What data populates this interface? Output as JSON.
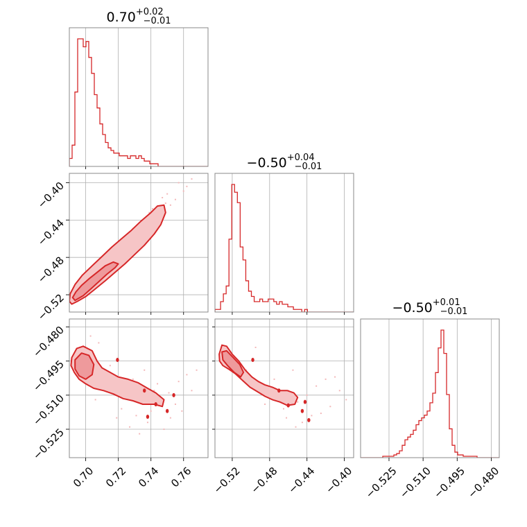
{
  "colors": {
    "series": "#d62728",
    "fill_outer": "#f6c5c6",
    "fill_inner": "#ee9a9c",
    "scatter": "#f3b8b9"
  },
  "titles": [
    {
      "value": "0.70",
      "plus": "+0.02",
      "minus": "−0.01"
    },
    {
      "value": "−0.50",
      "plus": "+0.04",
      "minus": "−0.01"
    },
    {
      "value": "−0.50",
      "plus": "+0.01",
      "minus": "−0.01"
    }
  ],
  "chart_data": {
    "type": "corner",
    "parameters": [
      {
        "range": [
          0.69,
          0.775
        ],
        "ticks": [
          0.7,
          0.72,
          0.74,
          0.76
        ],
        "tick_labels": [
          "0.70",
          "0.72",
          "0.74",
          "0.76"
        ]
      },
      {
        "range": [
          -0.5385,
          -0.39
        ],
        "ticks": [
          -0.52,
          -0.48,
          -0.44,
          -0.4
        ],
        "tick_labels": [
          "−0.52",
          "−0.48",
          "−0.44",
          "−0.40"
        ]
      },
      {
        "range": [
          -0.5375,
          -0.4765
        ],
        "ticks": [
          -0.525,
          -0.51,
          -0.495,
          -0.48
        ],
        "tick_labels": [
          "−0.525",
          "−0.510",
          "−0.495",
          "−0.480"
        ]
      }
    ],
    "histograms": [
      {
        "param": 0,
        "edges_start": 0.69,
        "bin_width": 0.0017,
        "counts": [
          3,
          8,
          28,
          48,
          48,
          45,
          47,
          41,
          35,
          27,
          22,
          16,
          12,
          9,
          7,
          6,
          5,
          5,
          4,
          4,
          4,
          3,
          4,
          4,
          3,
          4,
          3,
          2,
          2,
          1,
          1,
          1,
          0,
          0,
          0,
          0,
          0,
          0,
          0,
          0,
          0,
          0,
          0,
          0,
          0,
          0,
          0,
          0,
          0,
          0
        ]
      },
      {
        "param": 1,
        "edges_start": -0.5385,
        "bin_width": 0.003,
        "counts": [
          1,
          1,
          4,
          7,
          10,
          28,
          49,
          46,
          42,
          25,
          20,
          12,
          8,
          6,
          4,
          4,
          5,
          4,
          4,
          5,
          5,
          4,
          3,
          4,
          3,
          3,
          2,
          2,
          1,
          1,
          1,
          0,
          1,
          0,
          0,
          0,
          0,
          0,
          0,
          0,
          0,
          0,
          0,
          0,
          0,
          0,
          0,
          0,
          0,
          0
        ]
      },
      {
        "param": 2,
        "edges_start": -0.5375,
        "bin_width": 0.00122,
        "counts": [
          0,
          0,
          0,
          0,
          0,
          0,
          0,
          0,
          1,
          1,
          1,
          1,
          2,
          3,
          5,
          9,
          13,
          15,
          17,
          20,
          24,
          27,
          29,
          31,
          34,
          40,
          47,
          62,
          80,
          93,
          76,
          46,
          21,
          9,
          4,
          2,
          2,
          1,
          1,
          1,
          1,
          1,
          0,
          0,
          0,
          0,
          0,
          0,
          0,
          0
        ]
      }
    ],
    "pair_plots": [
      {
        "x_param": 0,
        "y_param": 1,
        "outer_contour": [
          [
            0.6915,
            -0.53
          ],
          [
            0.695,
            -0.527
          ],
          [
            0.7,
            -0.522
          ],
          [
            0.705,
            -0.515
          ],
          [
            0.712,
            -0.505
          ],
          [
            0.718,
            -0.496
          ],
          [
            0.724,
            -0.487
          ],
          [
            0.73,
            -0.477
          ],
          [
            0.736,
            -0.467
          ],
          [
            0.742,
            -0.455
          ],
          [
            0.746,
            -0.445
          ],
          [
            0.749,
            -0.432
          ],
          [
            0.748,
            -0.424
          ],
          [
            0.744,
            -0.425
          ],
          [
            0.74,
            -0.432
          ],
          [
            0.734,
            -0.441
          ],
          [
            0.728,
            -0.451
          ],
          [
            0.722,
            -0.46
          ],
          [
            0.716,
            -0.469
          ],
          [
            0.71,
            -0.479
          ],
          [
            0.704,
            -0.489
          ],
          [
            0.698,
            -0.499
          ],
          [
            0.6935,
            -0.509
          ],
          [
            0.6905,
            -0.519
          ],
          [
            0.69,
            -0.527
          ]
        ],
        "inner_contour": [
          [
            0.6935,
            -0.526
          ],
          [
            0.6985,
            -0.521
          ],
          [
            0.703,
            -0.514
          ],
          [
            0.708,
            -0.506
          ],
          [
            0.713,
            -0.498
          ],
          [
            0.718,
            -0.491
          ],
          [
            0.72,
            -0.487
          ],
          [
            0.717,
            -0.485
          ],
          [
            0.712,
            -0.489
          ],
          [
            0.707,
            -0.496
          ],
          [
            0.702,
            -0.503
          ],
          [
            0.6975,
            -0.51
          ],
          [
            0.694,
            -0.517
          ],
          [
            0.692,
            -0.523
          ]
        ],
        "scatter": [
          [
            0.703,
            -0.515
          ],
          [
            0.71,
            -0.498
          ],
          [
            0.716,
            -0.488
          ],
          [
            0.725,
            -0.47
          ],
          [
            0.731,
            -0.458
          ],
          [
            0.738,
            -0.447
          ],
          [
            0.744,
            -0.43
          ],
          [
            0.749,
            -0.422
          ],
          [
            0.755,
            -0.418
          ],
          [
            0.76,
            -0.409
          ],
          [
            0.745,
            -0.436
          ],
          [
            0.728,
            -0.462
          ],
          [
            0.72,
            -0.479
          ],
          [
            0.698,
            -0.522
          ],
          [
            0.735,
            -0.44
          ],
          [
            0.75,
            -0.412
          ],
          [
            0.757,
            -0.4
          ],
          [
            0.765,
            -0.396
          ],
          [
            0.741,
            -0.428
          ],
          [
            0.733,
            -0.452
          ],
          [
            0.722,
            -0.47
          ],
          [
            0.713,
            -0.492
          ],
          [
            0.707,
            -0.503
          ],
          [
            0.746,
            -0.442
          ],
          [
            0.752,
            -0.424
          ],
          [
            0.739,
            -0.432
          ],
          [
            0.726,
            -0.455
          ],
          [
            0.718,
            -0.474
          ],
          [
            0.7,
            -0.512
          ],
          [
            0.729,
            -0.449
          ],
          [
            0.747,
            -0.416
          ],
          [
            0.762,
            -0.404
          ],
          [
            0.737,
            -0.459
          ],
          [
            0.742,
            -0.438
          ],
          [
            0.711,
            -0.486
          ],
          [
            0.724,
            -0.461
          ]
        ]
      },
      {
        "x_param": 0,
        "y_param": 2,
        "outer_contour": [
          [
            0.6915,
            -0.4935
          ],
          [
            0.6945,
            -0.4895
          ],
          [
            0.6985,
            -0.4885
          ],
          [
            0.704,
            -0.4905
          ],
          [
            0.707,
            -0.495
          ],
          [
            0.71,
            -0.498
          ],
          [
            0.715,
            -0.5
          ],
          [
            0.72,
            -0.502
          ],
          [
            0.726,
            -0.503
          ],
          [
            0.732,
            -0.5045
          ],
          [
            0.738,
            -0.507
          ],
          [
            0.743,
            -0.509
          ],
          [
            0.748,
            -0.512
          ],
          [
            0.747,
            -0.515
          ],
          [
            0.742,
            -0.514
          ],
          [
            0.735,
            -0.514
          ],
          [
            0.729,
            -0.5125
          ],
          [
            0.723,
            -0.5115
          ],
          [
            0.717,
            -0.5095
          ],
          [
            0.711,
            -0.508
          ],
          [
            0.705,
            -0.507
          ],
          [
            0.7,
            -0.505
          ],
          [
            0.696,
            -0.503
          ],
          [
            0.693,
            -0.5
          ],
          [
            0.691,
            -0.497
          ]
        ],
        "inner_contour": [
          [
            0.6935,
            -0.4945
          ],
          [
            0.6975,
            -0.4915
          ],
          [
            0.702,
            -0.4925
          ],
          [
            0.705,
            -0.4965
          ],
          [
            0.704,
            -0.501
          ],
          [
            0.7,
            -0.503
          ],
          [
            0.696,
            -0.5015
          ],
          [
            0.6935,
            -0.4985
          ]
        ],
        "scatter": [
          [
            0.7,
            -0.492
          ],
          [
            0.712,
            -0.503
          ],
          [
            0.718,
            -0.51
          ],
          [
            0.726,
            -0.508
          ],
          [
            0.734,
            -0.512
          ],
          [
            0.74,
            -0.517
          ],
          [
            0.746,
            -0.513
          ],
          [
            0.752,
            -0.52
          ],
          [
            0.757,
            -0.504
          ],
          [
            0.762,
            -0.501
          ],
          [
            0.738,
            -0.522
          ],
          [
            0.731,
            -0.519
          ],
          [
            0.722,
            -0.516
          ],
          [
            0.715,
            -0.497
          ],
          [
            0.708,
            -0.487
          ],
          [
            0.744,
            -0.505
          ],
          [
            0.755,
            -0.514
          ],
          [
            0.765,
            -0.508
          ],
          [
            0.768,
            -0.499
          ],
          [
            0.729,
            -0.503
          ],
          [
            0.736,
            -0.499
          ],
          [
            0.748,
            -0.525
          ],
          [
            0.706,
            -0.512
          ],
          [
            0.719,
            -0.52
          ],
          [
            0.727,
            -0.524
          ],
          [
            0.742,
            -0.508
          ],
          [
            0.751,
            -0.509
          ],
          [
            0.759,
            -0.517
          ],
          [
            0.703,
            -0.484
          ],
          [
            0.733,
            -0.527
          ]
        ],
        "markers": [
          [
            0.7195,
            -0.4945
          ],
          [
            0.736,
            -0.508
          ],
          [
            0.743,
            -0.514
          ],
          [
            0.738,
            -0.5195
          ],
          [
            0.75,
            -0.517
          ],
          [
            0.754,
            -0.51
          ]
        ]
      },
      {
        "x_param": 1,
        "y_param": 2,
        "outer_contour": [
          [
            -0.534,
            -0.492
          ],
          [
            -0.531,
            -0.488
          ],
          [
            -0.526,
            -0.4885
          ],
          [
            -0.52,
            -0.492
          ],
          [
            -0.513,
            -0.495
          ],
          [
            -0.506,
            -0.499
          ],
          [
            -0.499,
            -0.502
          ],
          [
            -0.492,
            -0.504
          ],
          [
            -0.485,
            -0.5055
          ],
          [
            -0.477,
            -0.5065
          ],
          [
            -0.469,
            -0.508
          ],
          [
            -0.461,
            -0.508
          ],
          [
            -0.454,
            -0.509
          ],
          [
            -0.45,
            -0.511
          ],
          [
            -0.453,
            -0.514
          ],
          [
            -0.461,
            -0.5145
          ],
          [
            -0.469,
            -0.513
          ],
          [
            -0.477,
            -0.512
          ],
          [
            -0.485,
            -0.5105
          ],
          [
            -0.493,
            -0.5085
          ],
          [
            -0.501,
            -0.5065
          ],
          [
            -0.509,
            -0.5035
          ],
          [
            -0.517,
            -0.5005
          ],
          [
            -0.524,
            -0.4985
          ],
          [
            -0.53,
            -0.497
          ],
          [
            -0.5335,
            -0.495
          ]
        ],
        "inner_contour": [
          [
            -0.531,
            -0.491
          ],
          [
            -0.526,
            -0.4905
          ],
          [
            -0.519,
            -0.4935
          ],
          [
            -0.512,
            -0.4965
          ],
          [
            -0.508,
            -0.5
          ],
          [
            -0.511,
            -0.502
          ],
          [
            -0.518,
            -0.5
          ],
          [
            -0.525,
            -0.497
          ],
          [
            -0.53,
            -0.4945
          ]
        ],
        "scatter": [
          [
            -0.5,
            -0.503
          ],
          [
            -0.49,
            -0.507
          ],
          [
            -0.48,
            -0.509
          ],
          [
            -0.47,
            -0.512
          ],
          [
            -0.46,
            -0.508
          ],
          [
            -0.45,
            -0.513
          ],
          [
            -0.44,
            -0.51
          ],
          [
            -0.43,
            -0.506
          ],
          [
            -0.42,
            -0.503
          ],
          [
            -0.41,
            -0.502
          ],
          [
            -0.405,
            -0.508
          ],
          [
            -0.425,
            -0.518
          ],
          [
            -0.445,
            -0.522
          ],
          [
            -0.465,
            -0.516
          ],
          [
            -0.485,
            -0.514
          ],
          [
            -0.505,
            -0.499
          ],
          [
            -0.515,
            -0.496
          ],
          [
            -0.495,
            -0.489
          ],
          [
            -0.475,
            -0.503
          ],
          [
            -0.455,
            -0.499
          ],
          [
            -0.435,
            -0.519
          ],
          [
            -0.415,
            -0.515
          ],
          [
            -0.452,
            -0.524
          ],
          [
            -0.462,
            -0.52
          ],
          [
            -0.398,
            -0.512
          ]
        ],
        "markers": [
          [
            -0.498,
            -0.4945
          ],
          [
            -0.47,
            -0.508
          ],
          [
            -0.46,
            -0.5145
          ],
          [
            -0.445,
            -0.517
          ],
          [
            -0.438,
            -0.521
          ],
          [
            -0.442,
            -0.513
          ]
        ]
      }
    ]
  }
}
